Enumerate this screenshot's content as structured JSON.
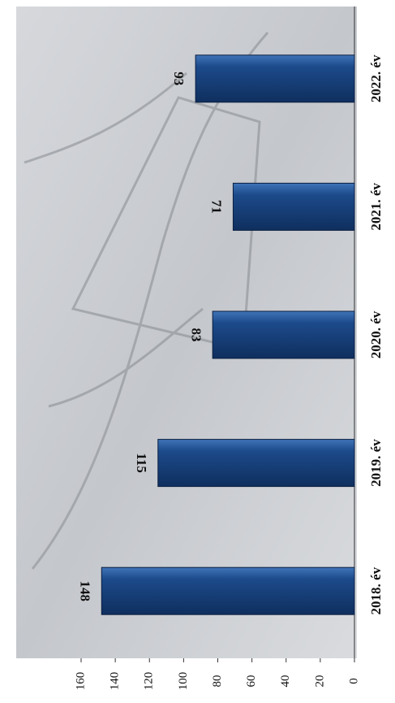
{
  "chart_data": {
    "type": "bar",
    "categories": [
      "2018. év",
      "2019. év",
      "2020. év",
      "2021. év",
      "2022. év"
    ],
    "values": [
      148,
      115,
      83,
      71,
      93
    ],
    "color": "#1c4a8a",
    "ylim": [
      0,
      160
    ],
    "yticks": [
      0,
      20,
      40,
      60,
      80,
      100,
      120,
      140,
      160
    ],
    "grid": false
  }
}
